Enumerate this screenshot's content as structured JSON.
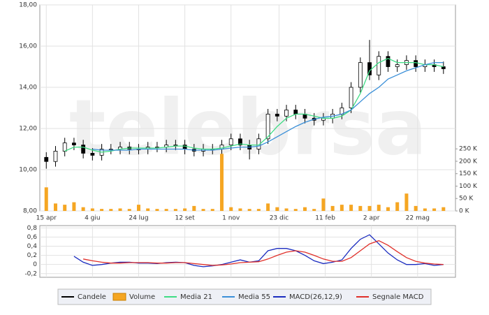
{
  "chart_data": [
    {
      "type": "candlestick",
      "watermark": "telebrsa",
      "x": [
        0,
        10,
        20,
        30,
        40,
        50,
        60,
        70,
        80,
        90,
        100,
        110,
        120,
        130,
        140,
        150,
        160,
        170,
        180,
        190,
        200,
        210,
        220,
        230,
        240,
        250,
        260,
        270,
        280,
        290,
        300,
        310,
        320,
        330,
        340,
        350,
        360,
        370,
        380,
        390,
        400,
        410,
        420,
        430
      ],
      "xlim": [
        -7,
        443
      ],
      "xticks": [
        {
          "value": 0,
          "label": "15 apr"
        },
        {
          "value": 50,
          "label": "4 giu"
        },
        {
          "value": 100,
          "label": "24 lug"
        },
        {
          "value": 150,
          "label": "12 set"
        },
        {
          "value": 200,
          "label": "1 nov"
        },
        {
          "value": 252,
          "label": "23 dic"
        },
        {
          "value": 302,
          "label": "11 feb"
        },
        {
          "value": 352,
          "label": "2 apr"
        },
        {
          "value": 402,
          "label": "22 mag"
        }
      ],
      "ylim": [
        8,
        18
      ],
      "yticks": [
        {
          "value": 8,
          "label": "8,00"
        },
        {
          "value": 10,
          "label": "10,00"
        },
        {
          "value": 12,
          "label": "12,00"
        },
        {
          "value": 14,
          "label": "14,00"
        },
        {
          "value": 16,
          "label": "16,00"
        },
        {
          "value": 18,
          "label": "18,00"
        }
      ],
      "y2lim": [
        0,
        830
      ],
      "y2ticks": [
        {
          "value": 0,
          "label": "0 K"
        },
        {
          "value": 50,
          "label": "50 K"
        },
        {
          "value": 100,
          "label": "100 K"
        },
        {
          "value": 150,
          "label": "150 K"
        },
        {
          "value": 200,
          "label": "200 K"
        },
        {
          "value": 250,
          "label": "250 K"
        }
      ],
      "grid": true,
      "series": [
        {
          "name": "Candele",
          "color": "#000000",
          "open": [
            10.6,
            10.4,
            10.9,
            11.3,
            11.2,
            10.8,
            10.7,
            11.0,
            11.0,
            11.1,
            11.0,
            11.0,
            11.1,
            11.1,
            11.2,
            11.2,
            11.0,
            10.9,
            11.0,
            11.0,
            11.2,
            11.5,
            11.2,
            11.0,
            11.5,
            12.7,
            12.6,
            12.9,
            12.7,
            12.5,
            12.4,
            12.5,
            12.7,
            13.0,
            14.0,
            15.2,
            14.6,
            15.5,
            15.0,
            15.1,
            15.3,
            15.0,
            15.1,
            15.0
          ],
          "high": [
            10.85,
            11.15,
            11.55,
            11.55,
            11.45,
            11.05,
            11.25,
            11.25,
            11.35,
            11.35,
            11.25,
            11.35,
            11.35,
            11.45,
            11.45,
            11.45,
            11.25,
            11.25,
            11.25,
            11.45,
            11.75,
            11.75,
            11.45,
            11.75,
            12.95,
            12.95,
            13.15,
            13.15,
            12.95,
            12.75,
            12.75,
            12.95,
            13.25,
            14.25,
            15.45,
            16.3,
            15.75,
            15.75,
            15.35,
            15.55,
            15.55,
            15.35,
            15.35,
            15.25
          ],
          "low": [
            10.05,
            10.15,
            10.65,
            10.95,
            10.55,
            10.45,
            10.45,
            10.75,
            10.75,
            10.75,
            10.75,
            10.75,
            10.85,
            10.85,
            10.95,
            10.75,
            10.65,
            10.65,
            10.75,
            10.75,
            10.95,
            10.95,
            10.5,
            10.75,
            11.25,
            12.35,
            12.35,
            12.45,
            12.25,
            12.15,
            12.15,
            12.25,
            12.45,
            12.75,
            13.75,
            14.35,
            14.35,
            14.75,
            14.75,
            14.85,
            14.75,
            14.75,
            14.75,
            14.65
          ],
          "close": [
            10.4,
            10.9,
            11.3,
            11.2,
            10.8,
            10.7,
            11.0,
            11.0,
            11.1,
            11.0,
            11.0,
            11.1,
            11.1,
            11.2,
            11.2,
            11.0,
            10.9,
            11.0,
            11.0,
            11.2,
            11.5,
            11.2,
            11.0,
            11.5,
            12.7,
            12.6,
            12.9,
            12.7,
            12.5,
            12.4,
            12.5,
            12.7,
            13.0,
            14.0,
            15.2,
            14.6,
            15.5,
            15.0,
            15.1,
            15.3,
            15.0,
            15.1,
            15.0,
            14.9
          ]
        },
        {
          "name": "Volume",
          "color": "#f5a623",
          "axis": "y2",
          "values": [
            95,
            30,
            25,
            35,
            15,
            10,
            8,
            8,
            10,
            8,
            25,
            10,
            8,
            8,
            8,
            10,
            20,
            8,
            8,
            230,
            15,
            10,
            8,
            8,
            30,
            15,
            10,
            8,
            15,
            8,
            50,
            20,
            25,
            25,
            20,
            20,
            25,
            15,
            35,
            70,
            20,
            10,
            10,
            15
          ]
        },
        {
          "name": "Media 21",
          "color": "#3ddc84",
          "values": [
            null,
            null,
            10.9,
            11.1,
            11.1,
            10.95,
            10.85,
            10.9,
            11.0,
            11.05,
            11.05,
            11.05,
            11.05,
            11.1,
            11.15,
            11.15,
            11.05,
            11.0,
            11.0,
            11.05,
            11.15,
            11.25,
            11.2,
            11.2,
            11.6,
            12.1,
            12.5,
            12.7,
            12.7,
            12.6,
            12.5,
            12.5,
            12.6,
            12.9,
            13.7,
            14.8,
            15.2,
            15.4,
            15.2,
            15.2,
            15.2,
            15.1,
            15.1,
            15.0
          ]
        },
        {
          "name": "Media 55",
          "color": "#3a8fd8",
          "values": [
            null,
            null,
            null,
            null,
            null,
            11.0,
            10.95,
            10.95,
            10.95,
            10.95,
            11.0,
            11.0,
            11.0,
            11.0,
            11.0,
            11.0,
            10.95,
            10.95,
            10.95,
            11.0,
            11.05,
            11.1,
            11.1,
            11.15,
            11.35,
            11.6,
            11.85,
            12.1,
            12.3,
            12.45,
            12.55,
            12.6,
            12.7,
            12.9,
            13.3,
            13.7,
            14.0,
            14.4,
            14.6,
            14.8,
            14.95,
            15.1,
            15.2,
            15.2
          ]
        }
      ]
    },
    {
      "type": "line",
      "x": [
        0,
        10,
        20,
        30,
        40,
        50,
        60,
        70,
        80,
        90,
        100,
        110,
        120,
        130,
        140,
        150,
        160,
        170,
        180,
        190,
        200,
        210,
        220,
        230,
        240,
        250,
        260,
        270,
        280,
        290,
        300,
        310,
        320,
        330,
        340,
        350,
        360,
        370,
        380,
        390,
        400,
        410,
        420,
        430
      ],
      "xlim": [
        -7,
        443
      ],
      "ylim": [
        -0.28,
        0.85
      ],
      "yticks": [
        {
          "value": -0.2,
          "label": "-0,2"
        },
        0,
        {
          "value": 0.2,
          "label": "0,2"
        },
        {
          "value": 0.4,
          "label": "0,4"
        },
        {
          "value": 0.6,
          "label": "0,6"
        },
        {
          "value": 0.8,
          "label": "0,8"
        }
      ],
      "grid": true,
      "series": [
        {
          "name": "MACD(26,12,9)",
          "color": "#1a2bbf",
          "values": [
            null,
            null,
            null,
            0.18,
            0.05,
            -0.02,
            0.0,
            0.03,
            0.05,
            0.05,
            0.03,
            0.03,
            0.02,
            0.04,
            0.05,
            0.04,
            -0.02,
            -0.05,
            -0.03,
            0.0,
            0.05,
            0.1,
            0.05,
            0.08,
            0.3,
            0.35,
            0.35,
            0.3,
            0.2,
            0.08,
            0.02,
            0.05,
            0.1,
            0.35,
            0.55,
            0.65,
            0.45,
            0.25,
            0.1,
            0.0,
            0.0,
            0.02,
            -0.02,
            0.0
          ]
        },
        {
          "name": "Segnale MACD",
          "color": "#e0302a",
          "values": [
            null,
            null,
            null,
            null,
            0.12,
            0.08,
            0.05,
            0.03,
            0.03,
            0.04,
            0.04,
            0.04,
            0.03,
            0.03,
            0.04,
            0.04,
            0.02,
            0.0,
            -0.02,
            -0.01,
            0.01,
            0.04,
            0.05,
            0.06,
            0.12,
            0.2,
            0.27,
            0.3,
            0.27,
            0.2,
            0.12,
            0.07,
            0.07,
            0.15,
            0.3,
            0.45,
            0.52,
            0.42,
            0.28,
            0.15,
            0.07,
            0.03,
            0.01,
            0.0
          ]
        }
      ]
    }
  ]
}
